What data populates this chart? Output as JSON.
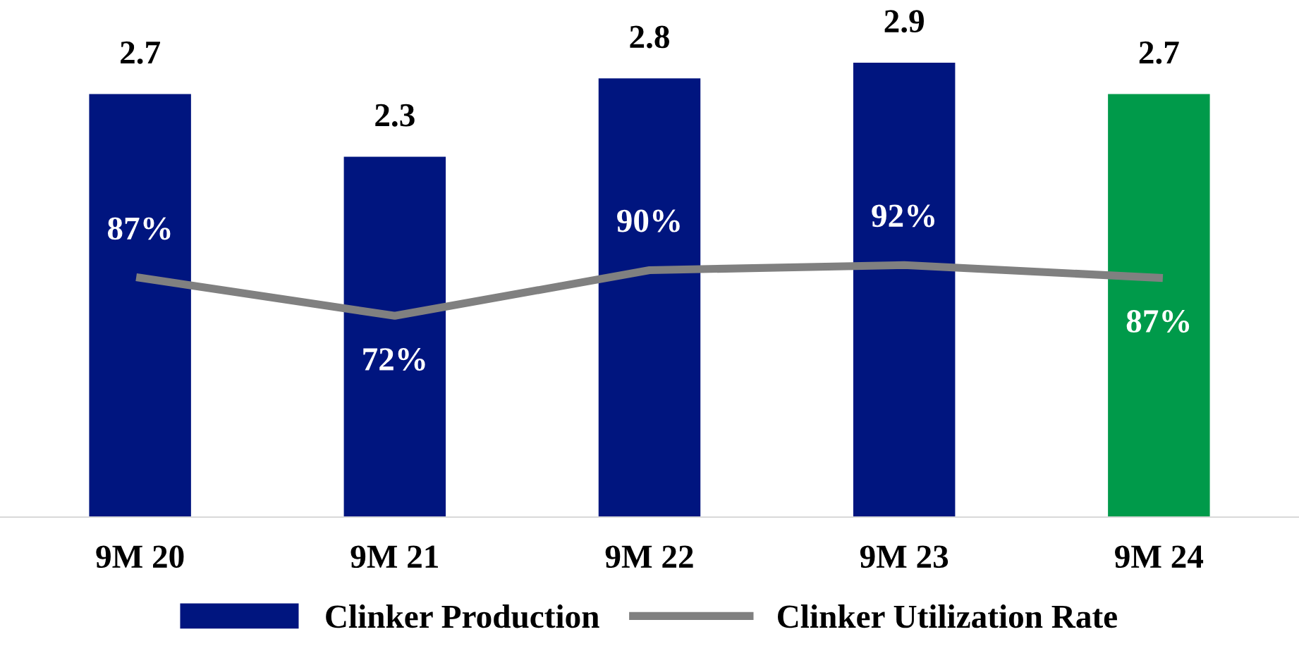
{
  "chart_data": {
    "type": "bar",
    "categories": [
      "9M 20",
      "9M 21",
      "9M 22",
      "9M 23",
      "9M 24"
    ],
    "series": [
      {
        "name": "Clinker Production",
        "color": "#00157f",
        "colors": [
          "#00157f",
          "#00157f",
          "#00157f",
          "#00157f",
          "#009a4a"
        ],
        "values": [
          2.7,
          2.3,
          2.8,
          2.9,
          2.7
        ]
      },
      {
        "name": "Clinker Utilization Rate",
        "type": "line",
        "axis": "y2",
        "color": "#808080",
        "values": [
          87,
          72,
          90,
          92,
          87
        ],
        "value_labels": [
          "87%",
          "72%",
          "90%",
          "92%",
          "87%"
        ]
      }
    ],
    "data_labels": true,
    "legend": "bottom",
    "grid": false,
    "tick_labels": "x",
    "marker": "none",
    "line_style": "solid"
  }
}
